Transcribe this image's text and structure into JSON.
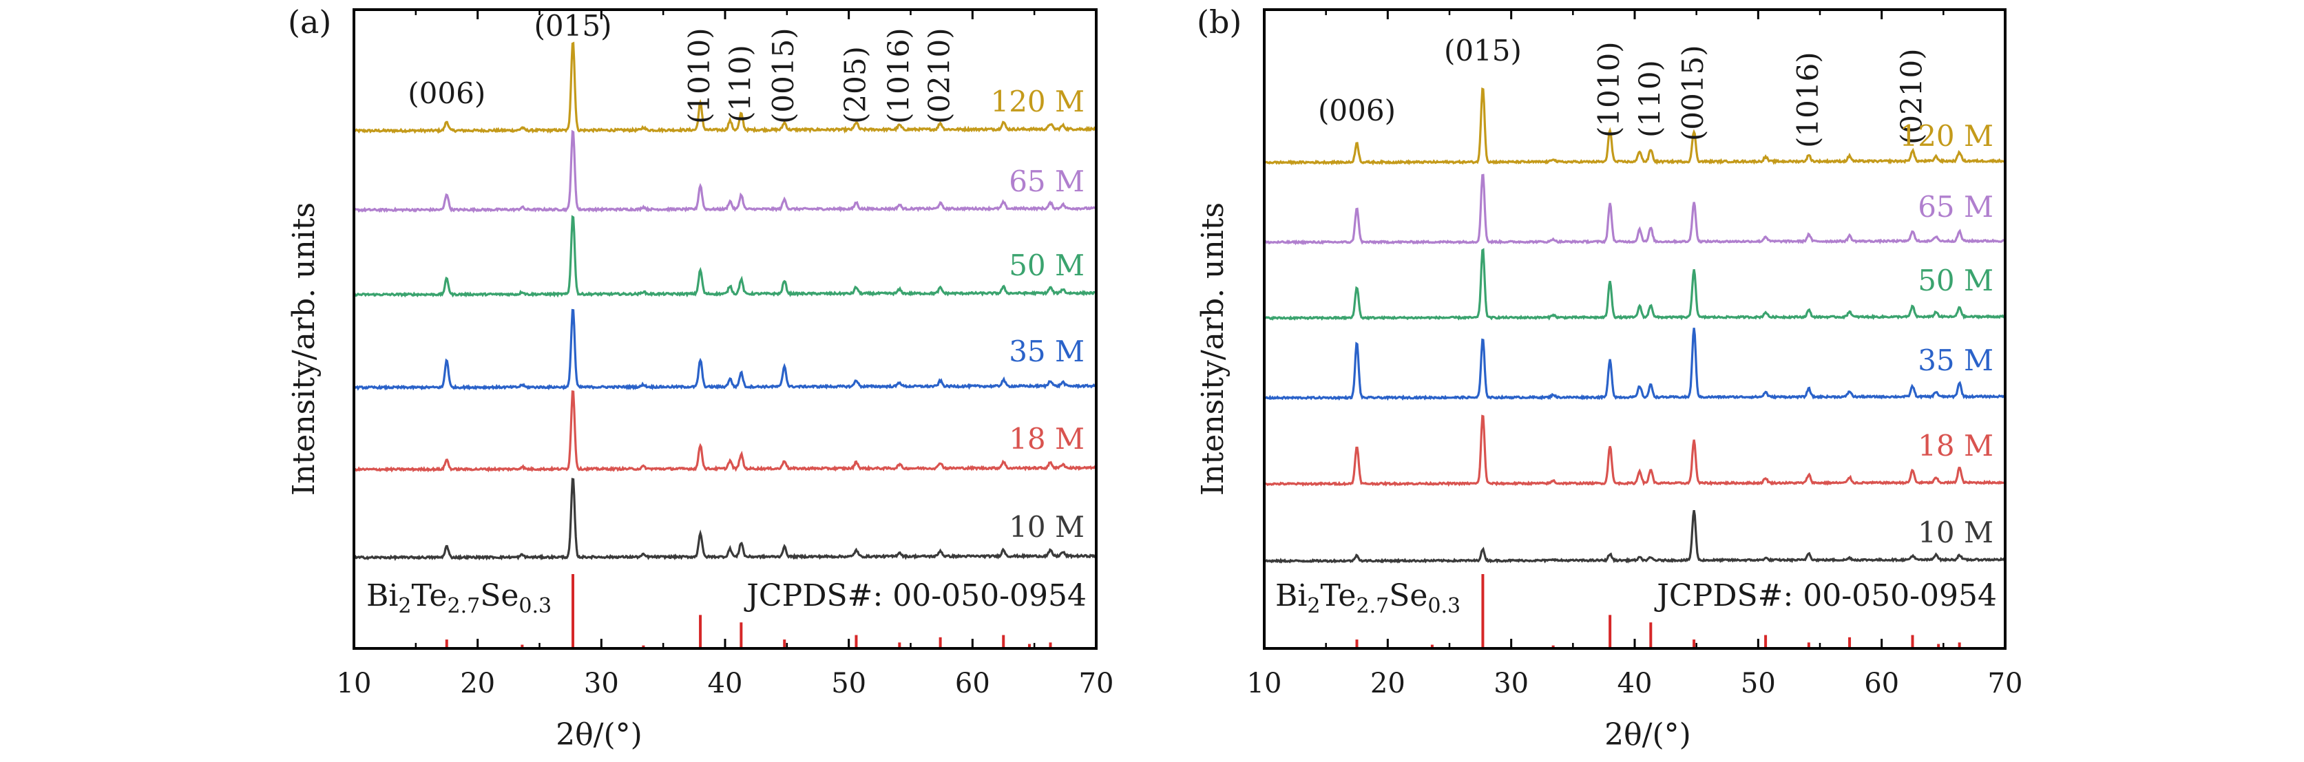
{
  "chart_data": [
    {
      "type": "line",
      "panel_label": "(a)",
      "xlabel": "2θ/(°)",
      "ylabel": "Intensity/arb. units",
      "xlim": [
        10,
        70
      ],
      "xticks": [
        10,
        20,
        30,
        40,
        50,
        60,
        70
      ],
      "y_axis_ticks": false,
      "peak_labels": [
        {
          "text": "(006)",
          "x": 17.5
        },
        {
          "text": "(015)",
          "x": 27.7
        },
        {
          "text": "(1010)",
          "x": 38.0
        },
        {
          "text": "(110)",
          "x": 41.3
        },
        {
          "text": "(0015)",
          "x": 44.8
        },
        {
          "text": "(205)",
          "x": 50.6
        },
        {
          "text": "(1016)",
          "x": 54.1
        },
        {
          "text": "(0210)",
          "x": 57.4
        }
      ],
      "reference": {
        "label_formula": {
          "base1": "Bi",
          "sub1": "2",
          "base2": "Te",
          "sub2": "2.7",
          "base3": "Se",
          "sub3": "0.3"
        },
        "card": "JCPDS#: 00-050-0954",
        "color": "#d62728",
        "sticks": [
          {
            "x": 17.5,
            "h": 0.12
          },
          {
            "x": 23.6,
            "h": 0.05
          },
          {
            "x": 27.7,
            "h": 1.0
          },
          {
            "x": 33.4,
            "h": 0.04
          },
          {
            "x": 38.0,
            "h": 0.45
          },
          {
            "x": 41.3,
            "h": 0.35
          },
          {
            "x": 44.8,
            "h": 0.12
          },
          {
            "x": 50.6,
            "h": 0.18
          },
          {
            "x": 54.1,
            "h": 0.08
          },
          {
            "x": 57.4,
            "h": 0.15
          },
          {
            "x": 62.5,
            "h": 0.18
          },
          {
            "x": 64.6,
            "h": 0.06
          },
          {
            "x": 66.3,
            "h": 0.08
          }
        ]
      },
      "series": [
        {
          "name": "120 M",
          "color": "#c49a1a",
          "peaks": [
            [
              17.5,
              0.1
            ],
            [
              23.6,
              0.03
            ],
            [
              27.7,
              1.0
            ],
            [
              33.4,
              0.03
            ],
            [
              38.0,
              0.3
            ],
            [
              40.4,
              0.1
            ],
            [
              41.3,
              0.18
            ],
            [
              44.8,
              0.08
            ],
            [
              50.6,
              0.08
            ],
            [
              54.1,
              0.05
            ],
            [
              57.4,
              0.07
            ],
            [
              62.5,
              0.08
            ],
            [
              66.3,
              0.06
            ],
            [
              67.3,
              0.04
            ]
          ]
        },
        {
          "name": "65 M",
          "color": "#b07fce",
          "peaks": [
            [
              17.5,
              0.2
            ],
            [
              23.6,
              0.03
            ],
            [
              27.7,
              1.0
            ],
            [
              33.4,
              0.03
            ],
            [
              38.0,
              0.3
            ],
            [
              40.4,
              0.1
            ],
            [
              41.3,
              0.18
            ],
            [
              44.8,
              0.12
            ],
            [
              50.6,
              0.08
            ],
            [
              54.1,
              0.05
            ],
            [
              57.4,
              0.07
            ],
            [
              62.5,
              0.08
            ],
            [
              66.3,
              0.07
            ],
            [
              67.3,
              0.05
            ]
          ]
        },
        {
          "name": "50 M",
          "color": "#3aa36e",
          "peaks": [
            [
              17.5,
              0.2
            ],
            [
              23.6,
              0.03
            ],
            [
              27.7,
              1.0
            ],
            [
              33.4,
              0.03
            ],
            [
              38.0,
              0.3
            ],
            [
              40.4,
              0.1
            ],
            [
              41.3,
              0.18
            ],
            [
              44.8,
              0.16
            ],
            [
              50.6,
              0.08
            ],
            [
              54.1,
              0.05
            ],
            [
              57.4,
              0.07
            ],
            [
              62.5,
              0.08
            ],
            [
              66.3,
              0.07
            ],
            [
              67.3,
              0.05
            ]
          ]
        },
        {
          "name": "35 M",
          "color": "#2a62c9",
          "peaks": [
            [
              17.5,
              0.35
            ],
            [
              23.6,
              0.03
            ],
            [
              27.7,
              1.0
            ],
            [
              33.4,
              0.03
            ],
            [
              38.0,
              0.34
            ],
            [
              40.4,
              0.1
            ],
            [
              41.3,
              0.18
            ],
            [
              44.8,
              0.26
            ],
            [
              50.6,
              0.08
            ],
            [
              54.1,
              0.05
            ],
            [
              57.4,
              0.07
            ],
            [
              62.5,
              0.08
            ],
            [
              66.3,
              0.07
            ],
            [
              67.3,
              0.05
            ]
          ]
        },
        {
          "name": "18 M",
          "color": "#d9534f",
          "peaks": [
            [
              17.5,
              0.12
            ],
            [
              23.6,
              0.03
            ],
            [
              27.7,
              1.0
            ],
            [
              33.4,
              0.03
            ],
            [
              38.0,
              0.3
            ],
            [
              40.4,
              0.1
            ],
            [
              41.3,
              0.18
            ],
            [
              44.8,
              0.1
            ],
            [
              50.6,
              0.08
            ],
            [
              54.1,
              0.05
            ],
            [
              57.4,
              0.07
            ],
            [
              62.5,
              0.08
            ],
            [
              66.3,
              0.07
            ],
            [
              67.3,
              0.05
            ]
          ]
        },
        {
          "name": "10 M",
          "color": "#3a3a3a",
          "peaks": [
            [
              17.5,
              0.14
            ],
            [
              23.6,
              0.03
            ],
            [
              27.7,
              1.0
            ],
            [
              33.4,
              0.03
            ],
            [
              38.0,
              0.3
            ],
            [
              40.4,
              0.1
            ],
            [
              41.3,
              0.18
            ],
            [
              44.8,
              0.12
            ],
            [
              50.6,
              0.08
            ],
            [
              54.1,
              0.05
            ],
            [
              57.4,
              0.07
            ],
            [
              62.5,
              0.08
            ],
            [
              66.3,
              0.07
            ],
            [
              67.3,
              0.05
            ]
          ]
        }
      ]
    },
    {
      "type": "line",
      "panel_label": "(b)",
      "xlabel": "2θ/(°)",
      "ylabel": "Intensity/arb. units",
      "xlim": [
        10,
        70
      ],
      "xticks": [
        10,
        20,
        30,
        40,
        50,
        60,
        70
      ],
      "y_axis_ticks": false,
      "peak_labels": [
        {
          "text": "(006)",
          "x": 17.5
        },
        {
          "text": "(015)",
          "x": 27.7
        },
        {
          "text": "(1010)",
          "x": 38.0
        },
        {
          "text": "(110)",
          "x": 41.3
        },
        {
          "text": "(0015)",
          "x": 44.8
        },
        {
          "text": "(1016)",
          "x": 54.1
        },
        {
          "text": "(0210)",
          "x": 62.5
        }
      ],
      "reference": {
        "label_formula": {
          "base1": "Bi",
          "sub1": "2",
          "base2": "Te",
          "sub2": "2.7",
          "base3": "Se",
          "sub3": "0.3"
        },
        "card": "JCPDS#: 00-050-0954",
        "color": "#d62728",
        "sticks": [
          {
            "x": 17.5,
            "h": 0.12
          },
          {
            "x": 23.6,
            "h": 0.05
          },
          {
            "x": 27.7,
            "h": 1.0
          },
          {
            "x": 33.4,
            "h": 0.04
          },
          {
            "x": 38.0,
            "h": 0.45
          },
          {
            "x": 41.3,
            "h": 0.35
          },
          {
            "x": 44.8,
            "h": 0.12
          },
          {
            "x": 50.6,
            "h": 0.18
          },
          {
            "x": 54.1,
            "h": 0.08
          },
          {
            "x": 57.4,
            "h": 0.15
          },
          {
            "x": 62.5,
            "h": 0.18
          },
          {
            "x": 64.6,
            "h": 0.06
          },
          {
            "x": 66.3,
            "h": 0.08
          }
        ]
      },
      "series": [
        {
          "name": "120 M",
          "color": "#c49a1a",
          "peaks": [
            [
              17.5,
              0.25
            ],
            [
              27.7,
              1.0
            ],
            [
              33.4,
              0.04
            ],
            [
              38.0,
              0.42
            ],
            [
              40.4,
              0.14
            ],
            [
              41.3,
              0.16
            ],
            [
              44.8,
              0.4
            ],
            [
              50.6,
              0.06
            ],
            [
              54.1,
              0.08
            ],
            [
              57.4,
              0.07
            ],
            [
              62.5,
              0.14
            ],
            [
              64.4,
              0.06
            ],
            [
              66.3,
              0.12
            ]
          ]
        },
        {
          "name": "65 M",
          "color": "#b07fce",
          "peaks": [
            [
              17.5,
              0.5
            ],
            [
              27.7,
              1.0
            ],
            [
              33.4,
              0.04
            ],
            [
              38.0,
              0.55
            ],
            [
              40.4,
              0.18
            ],
            [
              41.3,
              0.2
            ],
            [
              44.8,
              0.58
            ],
            [
              50.6,
              0.07
            ],
            [
              54.1,
              0.1
            ],
            [
              57.4,
              0.08
            ],
            [
              62.5,
              0.15
            ],
            [
              64.4,
              0.07
            ],
            [
              66.3,
              0.14
            ]
          ]
        },
        {
          "name": "50 M",
          "color": "#3aa36e",
          "peaks": [
            [
              17.5,
              0.45
            ],
            [
              27.7,
              1.0
            ],
            [
              33.4,
              0.04
            ],
            [
              38.0,
              0.52
            ],
            [
              40.4,
              0.16
            ],
            [
              41.3,
              0.18
            ],
            [
              44.8,
              0.7
            ],
            [
              50.6,
              0.07
            ],
            [
              54.1,
              0.1
            ],
            [
              57.4,
              0.08
            ],
            [
              62.5,
              0.15
            ],
            [
              64.4,
              0.07
            ],
            [
              66.3,
              0.14
            ]
          ]
        },
        {
          "name": "35 M",
          "color": "#2a62c9",
          "peaks": [
            [
              17.5,
              0.8
            ],
            [
              27.7,
              0.85
            ],
            [
              33.4,
              0.04
            ],
            [
              38.0,
              0.55
            ],
            [
              40.4,
              0.16
            ],
            [
              41.3,
              0.18
            ],
            [
              44.8,
              1.0
            ],
            [
              50.6,
              0.07
            ],
            [
              54.1,
              0.12
            ],
            [
              57.4,
              0.08
            ],
            [
              62.5,
              0.15
            ],
            [
              64.4,
              0.07
            ],
            [
              66.3,
              0.2
            ]
          ]
        },
        {
          "name": "18 M",
          "color": "#d9534f",
          "peaks": [
            [
              17.5,
              0.55
            ],
            [
              27.7,
              1.0
            ],
            [
              33.4,
              0.04
            ],
            [
              38.0,
              0.55
            ],
            [
              40.4,
              0.18
            ],
            [
              41.3,
              0.2
            ],
            [
              44.8,
              0.62
            ],
            [
              50.6,
              0.07
            ],
            [
              54.1,
              0.12
            ],
            [
              57.4,
              0.08
            ],
            [
              62.5,
              0.18
            ],
            [
              64.4,
              0.07
            ],
            [
              66.3,
              0.22
            ]
          ]
        },
        {
          "name": "10 M",
          "color": "#3a3a3a",
          "peaks": [
            [
              17.5,
              0.08
            ],
            [
              27.7,
              0.16
            ],
            [
              33.4,
              0.02
            ],
            [
              38.0,
              0.09
            ],
            [
              40.4,
              0.04
            ],
            [
              41.3,
              0.04
            ],
            [
              44.8,
              0.72
            ],
            [
              50.6,
              0.03
            ],
            [
              54.1,
              0.1
            ],
            [
              57.4,
              0.03
            ],
            [
              62.5,
              0.06
            ],
            [
              64.4,
              0.08
            ],
            [
              66.3,
              0.07
            ]
          ]
        }
      ]
    }
  ]
}
